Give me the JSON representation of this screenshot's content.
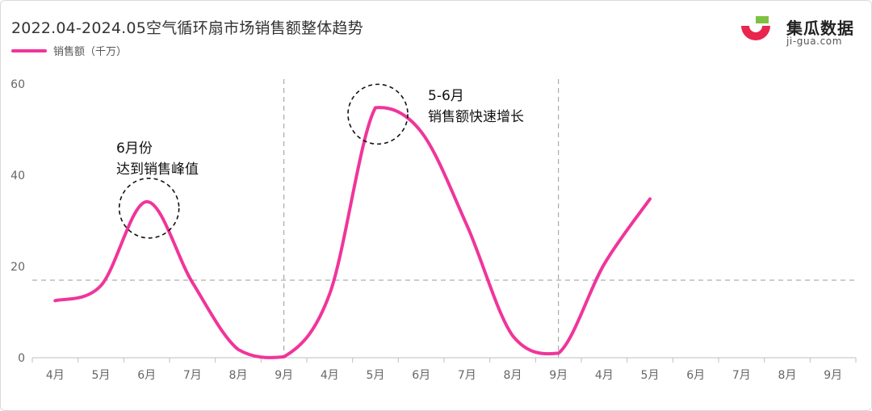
{
  "title": "2022.04-2024.05空气循环扇市场销售额整体趋势",
  "brand": {
    "name": "集瓜数据",
    "url": "ji-gua.com"
  },
  "colors": {
    "series": "#f0359a",
    "logo_red": "#e8264e",
    "logo_green": "#7ec242",
    "axis": "#bfbfbf",
    "dashed": "#9a9a9a"
  },
  "chart_data": {
    "type": "line",
    "title": "2022.04-2024.05空气循环扇市场销售额整体趋势",
    "xlabel": "",
    "ylabel": "",
    "ylim": [
      0,
      60
    ],
    "yticks": [
      0,
      20,
      40,
      60
    ],
    "categories": [
      "4月",
      "5月",
      "6月",
      "7月",
      "8月",
      "9月",
      "4月",
      "5月",
      "6月",
      "7月",
      "8月",
      "9月",
      "4月",
      "5月",
      "6月",
      "7月",
      "8月",
      "9月"
    ],
    "series": [
      {
        "name": "销售额（千万）",
        "values": [
          12.5,
          15.8,
          34.2,
          16.5,
          1.8,
          0.2,
          14.0,
          54.8,
          49.5,
          29.0,
          4.8,
          1.0,
          20.5,
          34.8,
          null,
          null,
          null,
          null
        ]
      }
    ],
    "reference_line": 17,
    "period_dividers_after": [
      "9月",
      "9月"
    ],
    "legend": "top-left",
    "grid": false,
    "annotations": [
      {
        "lines": [
          "6月份",
          "达到销售峰值"
        ],
        "category_index": 2
      },
      {
        "lines": [
          "5-6月",
          "销售额快速增长"
        ],
        "category_index": 7
      }
    ]
  }
}
